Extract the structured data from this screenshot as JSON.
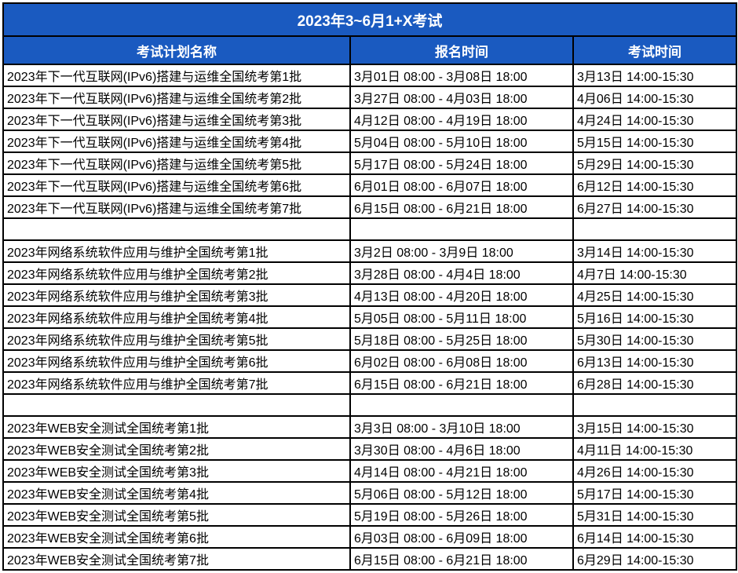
{
  "title": "2023年3~6月1+X考试",
  "columns": [
    "考试计划名称",
    "报名时间",
    "考试时间"
  ],
  "colors": {
    "header_bg": "#1A5AC0",
    "header_text": "#FFFFFF",
    "border": "#000000",
    "cell_bg": "#FFFFFF",
    "cell_text": "#000000"
  },
  "rows": [
    {
      "name": "2023年下一代互联网(IPv6)搭建与运维全国统考第1批",
      "signup": "3月01日 08:00 - 3月08日 18:00",
      "exam": "3月13日 14:00-15:30"
    },
    {
      "name": "2023年下一代互联网(IPv6)搭建与运维全国统考第2批",
      "signup": "3月27日 08:00 - 4月03日 18:00",
      "exam": "4月06日 14:00-15:30"
    },
    {
      "name": "2023年下一代互联网(IPv6)搭建与运维全国统考第3批",
      "signup": "4月12日 08:00 - 4月19日 18:00",
      "exam": "4月24日 14:00-15:30"
    },
    {
      "name": "2023年下一代互联网(IPv6)搭建与运维全国统考第4批",
      "signup": "5月04日 08:00 - 5月10日 18:00",
      "exam": "5月15日 14:00-15:30"
    },
    {
      "name": "2023年下一代互联网(IPv6)搭建与运维全国统考第5批",
      "signup": "5月17日 08:00 - 5月24日 18:00",
      "exam": "5月29日 14:00-15:30"
    },
    {
      "name": "2023年下一代互联网(IPv6)搭建与运维全国统考第6批",
      "signup": "6月01日 08:00 - 6月07日 18:00",
      "exam": "6月12日 14:00-15:30"
    },
    {
      "name": "2023年下一代互联网(IPv6)搭建与运维全国统考第7批",
      "signup": "6月15日 08:00 - 6月21日 18:00",
      "exam": "6月27日 14:00-15:30"
    },
    {
      "name": "",
      "signup": "",
      "exam": ""
    },
    {
      "name": "2023年网络系统软件应用与维护全国统考第1批",
      "signup": "3月2日 08:00 - 3月9日 18:00",
      "exam": "3月14日 14:00-15:30"
    },
    {
      "name": "2023年网络系统软件应用与维护全国统考第2批",
      "signup": "3月28日 08:00 - 4月4日 18:00",
      "exam": "4月7日 14:00-15:30"
    },
    {
      "name": "2023年网络系统软件应用与维护全国统考第3批",
      "signup": "4月13日 08:00 - 4月20日 18:00",
      "exam": "4月25日 14:00-15:30"
    },
    {
      "name": "2023年网络系统软件应用与维护全国统考第4批",
      "signup": "5月05日 08:00 - 5月11日 18:00",
      "exam": "5月16日 14:00-15:30"
    },
    {
      "name": "2023年网络系统软件应用与维护全国统考第5批",
      "signup": "5月18日 08:00 - 5月25日 18:00",
      "exam": "5月30日 14:00-15:30"
    },
    {
      "name": "2023年网络系统软件应用与维护全国统考第6批",
      "signup": "6月02日 08:00 - 6月08日 18:00",
      "exam": "6月13日 14:00-15:30"
    },
    {
      "name": "2023年网络系统软件应用与维护全国统考第7批",
      "signup": "6月15日 08:00 - 6月21日 18:00",
      "exam": "6月28日 14:00-15:30"
    },
    {
      "name": "",
      "signup": "",
      "exam": ""
    },
    {
      "name": "2023年WEB安全测试全国统考第1批",
      "signup": "3月3日 08:00 - 3月10日 18:00",
      "exam": "3月15日 14:00-15:30"
    },
    {
      "name": "2023年WEB安全测试全国统考第2批",
      "signup": "3月30日 08:00 - 4月6日 18:00",
      "exam": "4月11日 14:00-15:30"
    },
    {
      "name": "2023年WEB安全测试全国统考第3批",
      "signup": "4月14日 08:00 - 4月21日 18:00",
      "exam": "4月26日 14:00-15:30"
    },
    {
      "name": "2023年WEB安全测试全国统考第4批",
      "signup": "5月06日 08:00 - 5月12日 18:00",
      "exam": "5月17日 14:00-15:30"
    },
    {
      "name": "2023年WEB安全测试全国统考第5批",
      "signup": "5月19日 08:00 - 5月26日 18:00",
      "exam": "5月31日 14:00-15:30"
    },
    {
      "name": "2023年WEB安全测试全国统考第6批",
      "signup": "6月03日 08:00 - 6月09日 18:00",
      "exam": "6月14日 14:00-15:30"
    },
    {
      "name": "2023年WEB安全测试全国统考第7批",
      "signup": "6月15日 08:00 - 6月21日 18:00",
      "exam": "6月29日 14:00-15:30"
    }
  ]
}
